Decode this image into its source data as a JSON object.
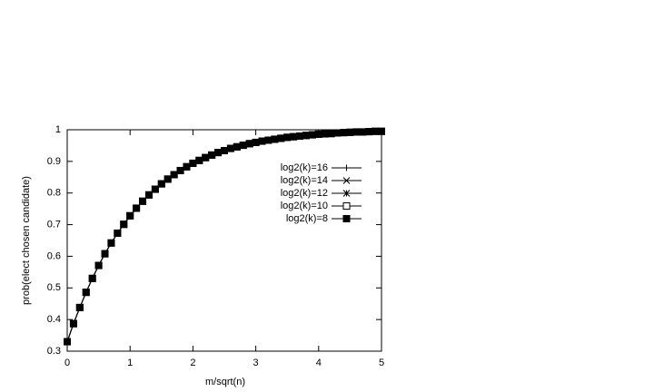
{
  "chart_data": {
    "type": "line",
    "xlabel": "m/sqrt(n)",
    "ylabel": "prob(elect chosen candidate)",
    "x": [
      0,
      0.1,
      0.2,
      0.3,
      0.4,
      0.5,
      0.6,
      0.7,
      0.8,
      0.9,
      1,
      1.1,
      1.2,
      1.3,
      1.4,
      1.5,
      1.6,
      1.7,
      1.8,
      1.9,
      2,
      2.1,
      2.2,
      2.3,
      2.4,
      2.5,
      2.6,
      2.7,
      2.8,
      2.9,
      3,
      3.1,
      3.2,
      3.3,
      3.4,
      3.5,
      3.6,
      3.7,
      3.8,
      3.9,
      4,
      4.1,
      4.2,
      4.3,
      4.4,
      4.5,
      4.6,
      4.7,
      4.8,
      4.9,
      5
    ],
    "series": [
      {
        "name": "log2(k)=16",
        "color": "#000000",
        "marker": "plus",
        "values": [
          0.33,
          0.387,
          0.438,
          0.486,
          0.53,
          0.571,
          0.608,
          0.642,
          0.673,
          0.701,
          0.728,
          0.752,
          0.774,
          0.794,
          0.812,
          0.829,
          0.844,
          0.858,
          0.871,
          0.883,
          0.894,
          0.903,
          0.912,
          0.92,
          0.928,
          0.934,
          0.941,
          0.946,
          0.951,
          0.956,
          0.96,
          0.964,
          0.967,
          0.97,
          0.973,
          0.976,
          0.978,
          0.98,
          0.982,
          0.984,
          0.986,
          0.987,
          0.988,
          0.99,
          0.991,
          0.992,
          0.993,
          0.993,
          0.994,
          0.995,
          0.995
        ]
      },
      {
        "name": "log2(k)=14",
        "color": "#000000",
        "marker": "cross",
        "values": [
          0.33,
          0.387,
          0.438,
          0.486,
          0.53,
          0.571,
          0.608,
          0.642,
          0.673,
          0.701,
          0.728,
          0.752,
          0.774,
          0.794,
          0.812,
          0.829,
          0.844,
          0.858,
          0.871,
          0.883,
          0.894,
          0.903,
          0.912,
          0.92,
          0.928,
          0.934,
          0.941,
          0.946,
          0.951,
          0.956,
          0.96,
          0.964,
          0.967,
          0.97,
          0.973,
          0.976,
          0.978,
          0.98,
          0.982,
          0.984,
          0.986,
          0.987,
          0.988,
          0.99,
          0.991,
          0.992,
          0.993,
          0.993,
          0.994,
          0.995,
          0.995
        ]
      },
      {
        "name": "log2(k)=12",
        "color": "#000000",
        "marker": "star",
        "values": [
          0.33,
          0.387,
          0.438,
          0.486,
          0.53,
          0.571,
          0.608,
          0.642,
          0.673,
          0.701,
          0.728,
          0.752,
          0.774,
          0.794,
          0.812,
          0.829,
          0.844,
          0.858,
          0.871,
          0.883,
          0.894,
          0.903,
          0.912,
          0.92,
          0.928,
          0.934,
          0.941,
          0.946,
          0.951,
          0.956,
          0.96,
          0.964,
          0.967,
          0.97,
          0.973,
          0.976,
          0.978,
          0.98,
          0.982,
          0.984,
          0.986,
          0.987,
          0.988,
          0.99,
          0.991,
          0.992,
          0.993,
          0.993,
          0.994,
          0.995,
          0.995
        ]
      },
      {
        "name": "log2(k)=10",
        "color": "#000000",
        "marker": "open-square",
        "values": [
          0.33,
          0.387,
          0.438,
          0.486,
          0.53,
          0.571,
          0.608,
          0.642,
          0.673,
          0.701,
          0.728,
          0.752,
          0.774,
          0.794,
          0.812,
          0.829,
          0.844,
          0.858,
          0.871,
          0.883,
          0.894,
          0.903,
          0.912,
          0.92,
          0.928,
          0.934,
          0.941,
          0.946,
          0.951,
          0.956,
          0.96,
          0.964,
          0.967,
          0.97,
          0.973,
          0.976,
          0.978,
          0.98,
          0.982,
          0.984,
          0.986,
          0.987,
          0.988,
          0.99,
          0.991,
          0.992,
          0.993,
          0.993,
          0.994,
          0.995,
          0.995
        ]
      },
      {
        "name": "log2(k)=8",
        "color": "#000000",
        "marker": "filled-square",
        "values": [
          0.33,
          0.387,
          0.438,
          0.486,
          0.53,
          0.571,
          0.608,
          0.642,
          0.673,
          0.701,
          0.728,
          0.752,
          0.774,
          0.794,
          0.812,
          0.829,
          0.844,
          0.858,
          0.871,
          0.883,
          0.894,
          0.903,
          0.912,
          0.92,
          0.928,
          0.934,
          0.941,
          0.946,
          0.951,
          0.956,
          0.96,
          0.964,
          0.967,
          0.97,
          0.973,
          0.976,
          0.978,
          0.98,
          0.982,
          0.984,
          0.986,
          0.987,
          0.988,
          0.99,
          0.991,
          0.992,
          0.993,
          0.993,
          0.994,
          0.995,
          0.995
        ]
      }
    ],
    "xlim": [
      0,
      5
    ],
    "xticks": [
      0,
      1,
      2,
      3,
      4,
      5
    ],
    "ylim": [
      0.3,
      1
    ],
    "yticks": [
      0.3,
      0.4,
      0.5,
      0.6,
      0.7,
      0.8,
      0.9,
      1
    ],
    "legend": "top right"
  }
}
